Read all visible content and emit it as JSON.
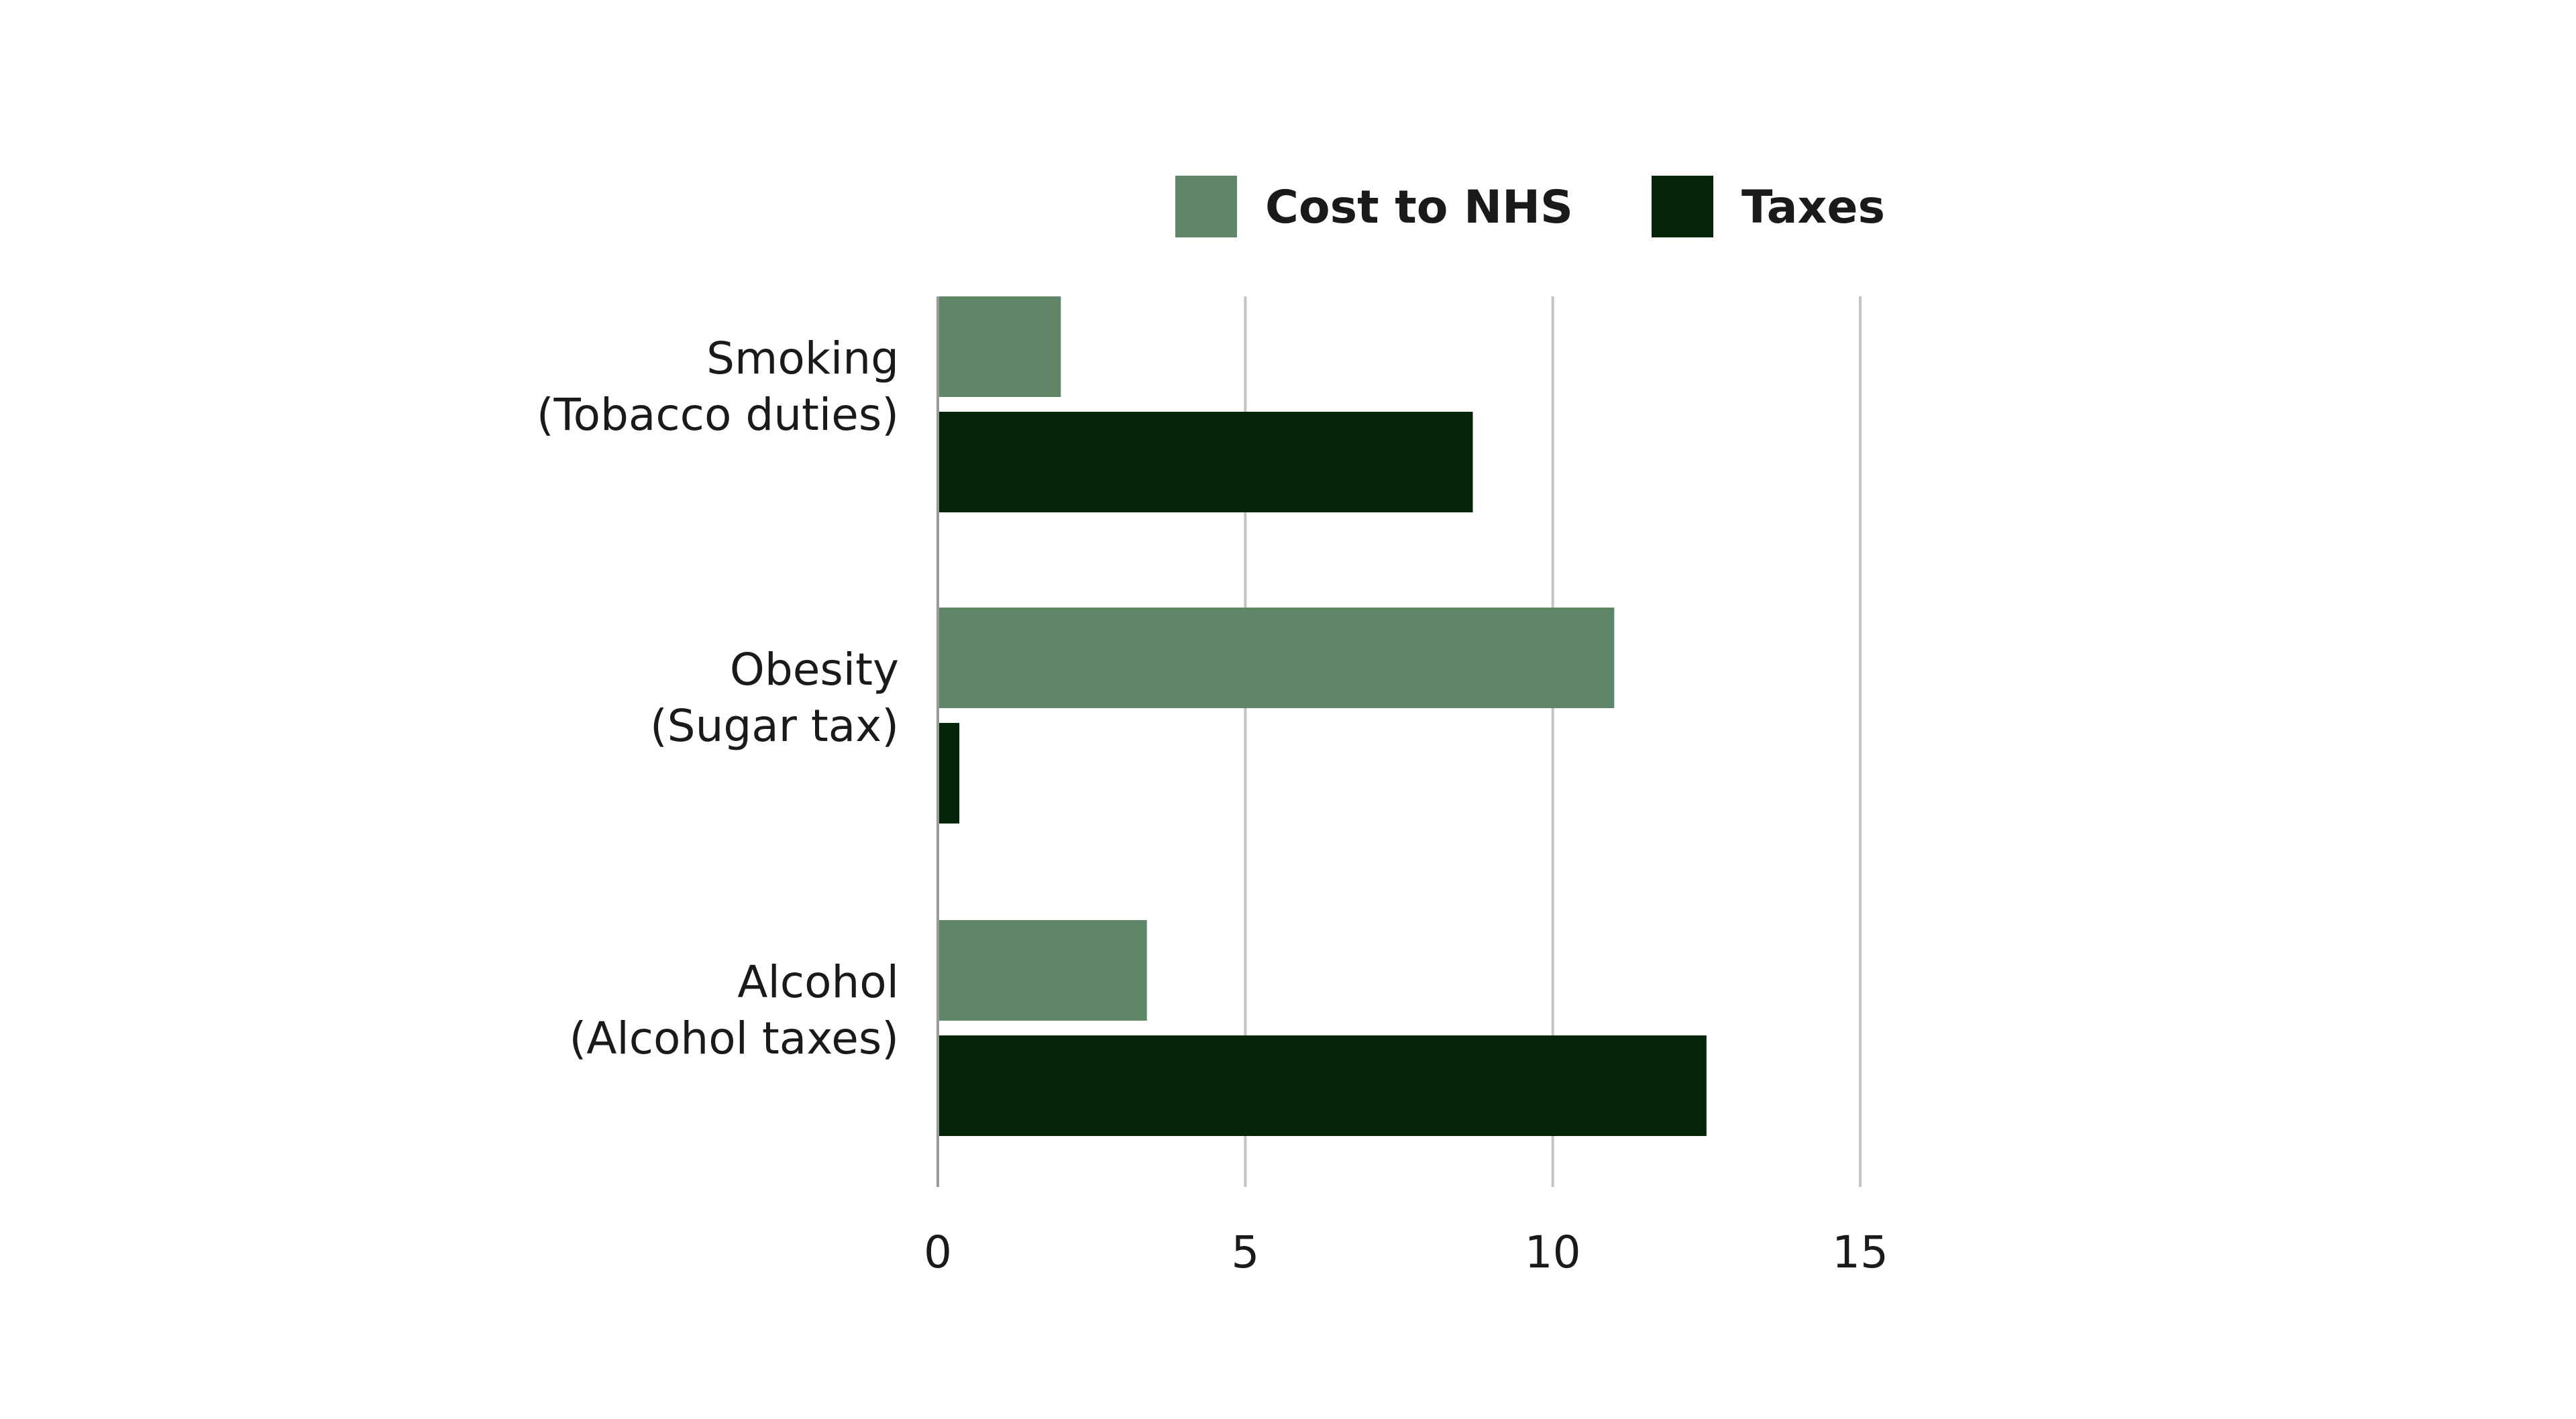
{
  "chart_data": {
    "type": "bar",
    "orientation": "horizontal",
    "categories": [
      [
        "Smoking",
        "(Tobacco duties)"
      ],
      [
        "Obesity",
        "(Sugar tax)"
      ],
      [
        "Alcohol",
        "(Alcohol taxes)"
      ]
    ],
    "series": [
      {
        "name": "Cost to NHS",
        "color": "#5d8566",
        "values": [
          2.0,
          11.0,
          3.4
        ]
      },
      {
        "name": "Taxes",
        "color": "#042508",
        "values": [
          8.7,
          0.35,
          12.5
        ]
      }
    ],
    "xlim": [
      0,
      15
    ],
    "xticks": [
      0,
      5,
      10,
      15
    ],
    "xlabel": "",
    "ylabel": "",
    "title": "",
    "grid": "vertical",
    "legend_position": "top"
  }
}
